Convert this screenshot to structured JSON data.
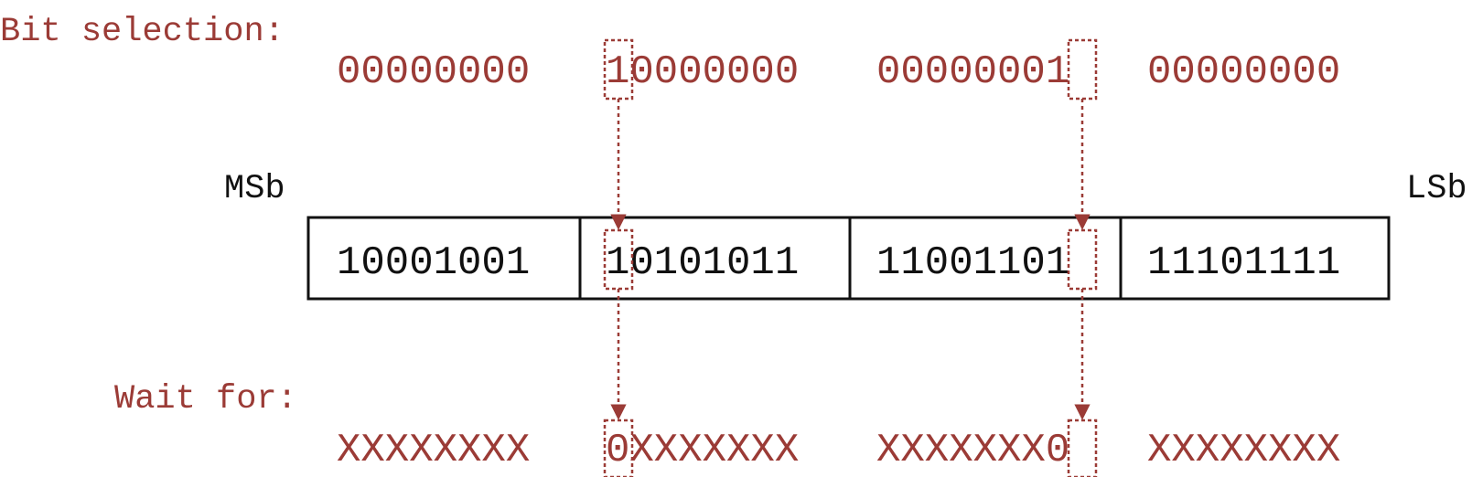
{
  "labels": {
    "bit_selection": "Bit selection:",
    "wait_for": "Wait for:",
    "msb": "MSb",
    "lsb": "LSb"
  },
  "selection_bytes": [
    "00000000",
    "10000000",
    "00000001",
    "00000000"
  ],
  "register_bytes": [
    "10001001",
    "10101011",
    "11001101",
    "11101111"
  ],
  "wait_bytes": [
    "XXXXXXXX",
    "0XXXXXXX",
    "XXXXXXX0",
    "XXXXXXXX"
  ],
  "colors": {
    "accent": "#9b3b36",
    "ink": "#111111"
  }
}
